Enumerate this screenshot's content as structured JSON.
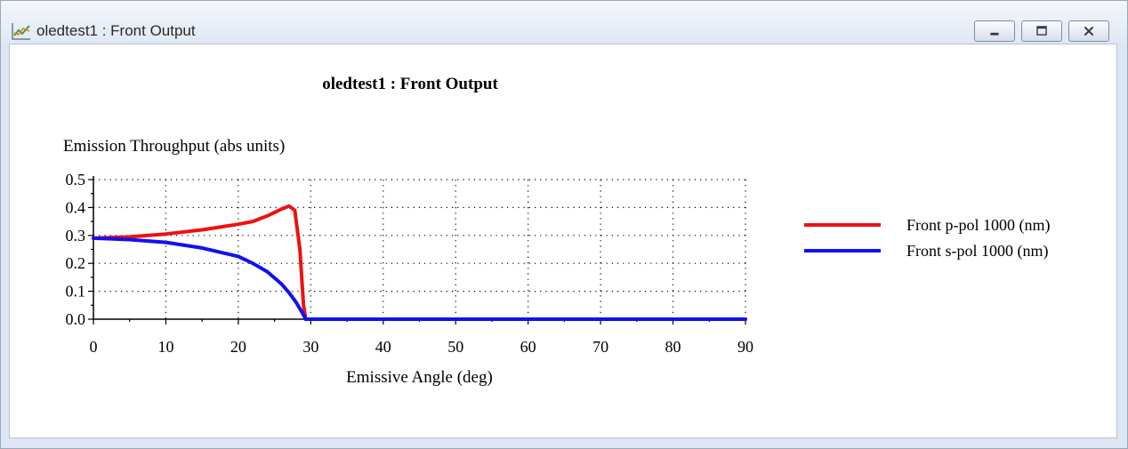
{
  "window": {
    "title": "oledtest1 : Front Output",
    "minimize_icon": "minimize-icon",
    "restore_icon": "restore-icon",
    "close_icon": "close-icon",
    "app_icon": "chart-icon"
  },
  "chart_data": {
    "type": "line",
    "title": "oledtest1 : Front Output",
    "xlabel": "Emissive Angle (deg)",
    "ylabel": "Emission Throughput (abs units)",
    "xlim": [
      0,
      90
    ],
    "ylim": [
      0,
      0.5
    ],
    "xticks": [
      "0",
      "10",
      "20",
      "30",
      "40",
      "50",
      "60",
      "70",
      "80",
      "90"
    ],
    "yticks": [
      "0.0",
      "0.1",
      "0.2",
      "0.3",
      "0.4",
      "0.5"
    ],
    "grid": true,
    "legend_position": "right",
    "series": [
      {
        "name": "Front p-pol 1000 (nm)",
        "color": "#ee1111",
        "x": [
          0,
          5,
          10,
          15,
          20,
          22,
          24,
          26,
          27,
          27.8,
          28.5,
          29,
          29.3,
          30,
          40,
          50,
          60,
          70,
          80,
          90
        ],
        "y": [
          0.29,
          0.295,
          0.305,
          0.32,
          0.34,
          0.35,
          0.37,
          0.395,
          0.405,
          0.39,
          0.25,
          0.05,
          0.0,
          0.0,
          0.0,
          0.0,
          0.0,
          0.0,
          0.0,
          0.0
        ]
      },
      {
        "name": "Front s-pol 1000 (nm)",
        "color": "#1111ee",
        "x": [
          0,
          5,
          10,
          15,
          20,
          22,
          24,
          26,
          27,
          28,
          29,
          29.3,
          30,
          40,
          50,
          60,
          70,
          80,
          90
        ],
        "y": [
          0.29,
          0.285,
          0.275,
          0.255,
          0.225,
          0.2,
          0.17,
          0.125,
          0.095,
          0.06,
          0.015,
          0.0,
          0.0,
          0.0,
          0.0,
          0.0,
          0.0,
          0.0,
          0.0
        ]
      }
    ]
  }
}
